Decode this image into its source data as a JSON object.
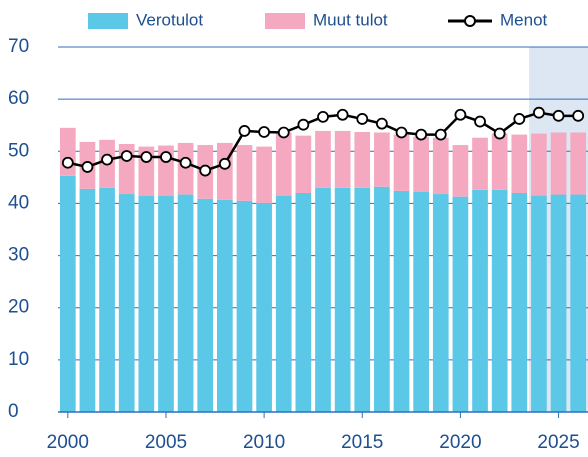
{
  "chart_data": {
    "type": "stacked_bar_line",
    "x": [
      2000,
      2001,
      2002,
      2003,
      2004,
      2005,
      2006,
      2007,
      2008,
      2009,
      2010,
      2011,
      2012,
      2013,
      2014,
      2015,
      2016,
      2017,
      2018,
      2019,
      2020,
      2021,
      2022,
      2023,
      2024,
      2025,
      2026
    ],
    "series": [
      {
        "name": "Verotulot",
        "type": "bar",
        "color": "#5bc8e8",
        "values": [
          45.3,
          42.8,
          43.0,
          41.8,
          41.5,
          41.5,
          41.7,
          40.9,
          40.7,
          40.5,
          40.1,
          41.5,
          42.0,
          43.0,
          43.0,
          43.0,
          43.2,
          42.4,
          42.2,
          41.8,
          41.3,
          42.6,
          42.6,
          42.0,
          41.5,
          41.7,
          41.7
        ]
      },
      {
        "name": "Muut tulot",
        "type": "bar",
        "color": "#f5a9c0",
        "values": [
          9.2,
          9.0,
          9.2,
          9.6,
          9.4,
          9.6,
          9.9,
          10.3,
          10.9,
          10.7,
          10.8,
          12.1,
          11.0,
          10.9,
          10.9,
          10.7,
          10.4,
          10.8,
          10.6,
          10.8,
          9.9,
          10.0,
          10.8,
          11.2,
          11.9,
          11.9,
          11.9
        ]
      },
      {
        "name": "Menot",
        "type": "line",
        "color": "#000000",
        "values": [
          47.8,
          47.0,
          48.4,
          49.1,
          48.9,
          48.9,
          47.8,
          46.3,
          47.6,
          53.9,
          53.7,
          53.6,
          55.1,
          56.6,
          57.0,
          56.2,
          55.3,
          53.6,
          53.2,
          53.2,
          57.0,
          55.7,
          53.4,
          56.2,
          57.4,
          56.8,
          56.8
        ]
      }
    ],
    "xlim": [
      1999.5,
      2026.5
    ],
    "xticks": [
      2000,
      2005,
      2010,
      2015,
      2020,
      2025
    ],
    "ylim": [
      0,
      70
    ],
    "yticks": [
      0,
      10,
      20,
      30,
      40,
      50,
      60,
      70
    ],
    "grid": true,
    "shaded_xrange": [
      2023.5,
      2026.5
    ],
    "shade_color": "#dde6f3",
    "grid_color": "#2f6fbd"
  }
}
